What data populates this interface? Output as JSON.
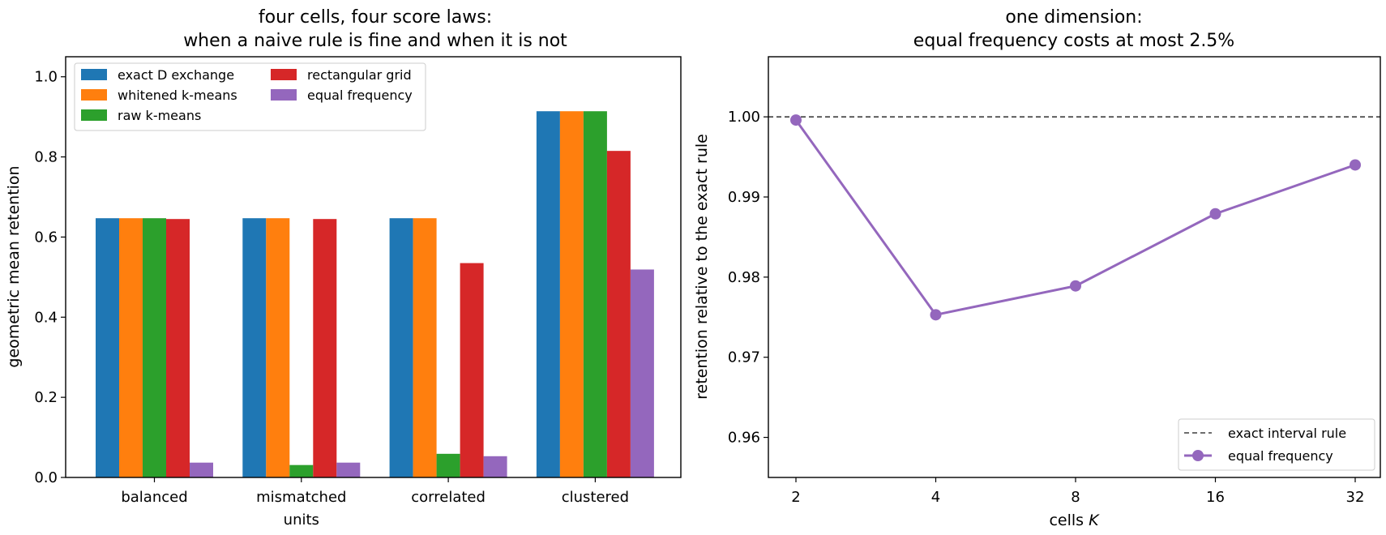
{
  "chart_data": [
    {
      "type": "bar",
      "title_lines": [
        "four cells, four score laws:",
        "when a naive rule is fine and when it is not"
      ],
      "xlabel": "",
      "ylabel": "geometric mean retention",
      "categories": [
        [
          "balanced"
        ],
        [
          "mismatched",
          "units"
        ],
        [
          "correlated"
        ],
        [
          "clustered"
        ]
      ],
      "ylim": [
        0,
        1.05
      ],
      "yticks": [
        0.0,
        0.2,
        0.4,
        0.6,
        0.8,
        1.0
      ],
      "ytick_labels": [
        "0.0",
        "0.2",
        "0.4",
        "0.6",
        "0.8",
        "1.0"
      ],
      "grid": false,
      "legend_placement": "top-left",
      "series": [
        {
          "name": "exact D exchange",
          "color": "#1f77b4",
          "values": [
            0.647,
            0.647,
            0.647,
            0.914
          ]
        },
        {
          "name": "whitened k-means",
          "color": "#ff7f0e",
          "values": [
            0.647,
            0.647,
            0.647,
            0.914
          ]
        },
        {
          "name": "raw k-means",
          "color": "#2ca02c",
          "values": [
            0.647,
            0.031,
            0.059,
            0.914
          ]
        },
        {
          "name": "rectangular grid",
          "color": "#d62728",
          "values": [
            0.645,
            0.645,
            0.535,
            0.815
          ]
        },
        {
          "name": "equal frequency",
          "color": "#9467bd",
          "values": [
            0.037,
            0.037,
            0.053,
            0.519
          ]
        }
      ]
    },
    {
      "type": "line",
      "title_lines": [
        "one dimension:",
        "equal frequency costs at most 2.5%"
      ],
      "xlabel_prefix": "cells ",
      "xlabel_var": "K",
      "ylabel": "retention relative to the exact rule",
      "x_scale": "log2",
      "x": [
        2,
        4,
        8,
        16,
        32
      ],
      "xtick_labels": [
        "2",
        "4",
        "8",
        "16",
        "32"
      ],
      "ylim": [
        0.955,
        1.0075
      ],
      "yticks": [
        0.96,
        0.97,
        0.98,
        0.99,
        1.0
      ],
      "ytick_labels": [
        "0.96",
        "0.97",
        "0.98",
        "0.99",
        "1.00"
      ],
      "grid": false,
      "legend_placement": "bottom-right",
      "reference_line": {
        "name": "exact interval rule",
        "y": 1.0,
        "color": "#3f3f3f",
        "style": "dashed"
      },
      "series": [
        {
          "name": "equal frequency",
          "color": "#9467bd",
          "values": [
            0.9996,
            0.9753,
            0.9789,
            0.9879,
            0.994
          ]
        }
      ]
    }
  ]
}
